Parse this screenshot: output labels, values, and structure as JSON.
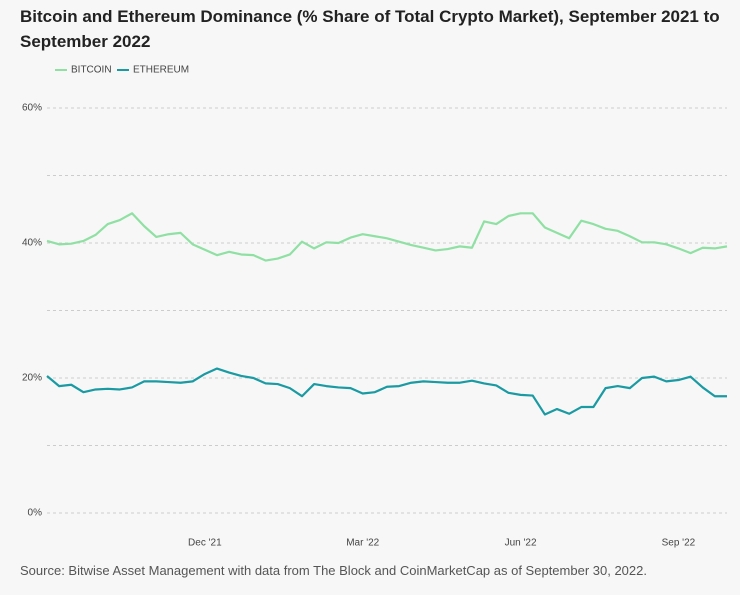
{
  "chart_data": {
    "type": "line",
    "title": "Bitcoin and Ethereum Dominance (% Share of Total Crypto Market), September 2021 to September 2022",
    "source": "Source: Bitwise Asset Management with data from The Block and CoinMarketCap as of September 30, 2022.",
    "categories": [
      null,
      null,
      null,
      null,
      null,
      null,
      null,
      null,
      null,
      null,
      null,
      null,
      null,
      "Dec '21",
      null,
      null,
      null,
      null,
      null,
      null,
      null,
      null,
      null,
      null,
      null,
      null,
      "Mar '22",
      null,
      null,
      null,
      null,
      null,
      null,
      null,
      null,
      null,
      null,
      null,
      null,
      "Jun '22",
      null,
      null,
      null,
      null,
      null,
      null,
      null,
      null,
      null,
      null,
      null,
      null,
      "Sep '22",
      null,
      null,
      null,
      null
    ],
    "series": [
      {
        "name": "BITCOIN",
        "color": "#8fe0a3",
        "values": [
          40.3,
          39.8,
          39.9,
          40.3,
          41.2,
          42.8,
          43.4,
          44.4,
          42.5,
          40.9,
          41.3,
          41.5,
          39.8,
          39.0,
          38.2,
          38.7,
          38.3,
          38.2,
          37.4,
          37.7,
          38.3,
          40.2,
          39.2,
          40.1,
          40.0,
          40.8,
          41.3,
          41.0,
          40.7,
          40.2,
          39.7,
          39.3,
          38.9,
          39.1,
          39.5,
          39.3,
          43.2,
          42.8,
          44.0,
          44.4,
          44.4,
          42.3,
          41.5,
          40.7,
          43.3,
          42.8,
          42.1,
          41.8,
          41.0,
          40.1,
          40.1,
          39.8,
          39.2,
          38.5,
          39.3,
          39.2,
          39.5
        ]
      },
      {
        "name": "ETHEREUM",
        "color": "#1a9aa2",
        "values": [
          20.3,
          18.8,
          19.0,
          17.9,
          18.3,
          18.4,
          18.3,
          18.6,
          19.5,
          19.5,
          19.4,
          19.3,
          19.5,
          20.6,
          21.4,
          20.8,
          20.3,
          20.0,
          19.2,
          19.1,
          18.5,
          17.3,
          19.1,
          18.8,
          18.6,
          18.5,
          17.7,
          17.9,
          18.7,
          18.8,
          19.3,
          19.5,
          19.4,
          19.3,
          19.3,
          19.6,
          19.2,
          18.9,
          17.8,
          17.5,
          17.4,
          14.6,
          15.4,
          14.7,
          15.7,
          15.7,
          18.5,
          18.8,
          18.5,
          20.0,
          20.2,
          19.5,
          19.7,
          20.2,
          18.6,
          17.3,
          17.3
        ]
      }
    ],
    "ylim": [
      0,
      60
    ],
    "yticks": [
      {
        "value": 0,
        "label": "0%"
      },
      {
        "value": 20,
        "label": "20%"
      },
      {
        "value": 40,
        "label": "40%"
      },
      {
        "value": 60,
        "label": "60%"
      }
    ],
    "minor_grid": [
      10,
      30,
      50
    ],
    "grid": true
  }
}
